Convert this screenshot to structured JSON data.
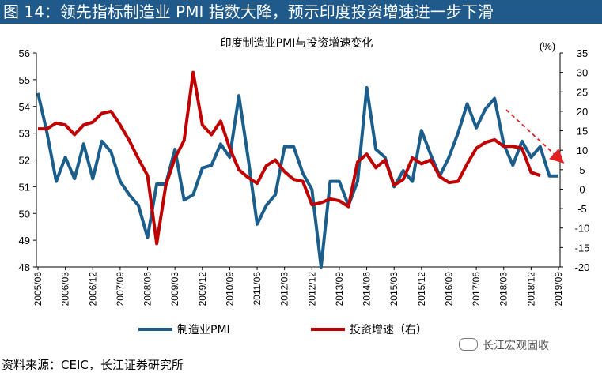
{
  "figure_title": "图 14：领先指标制造业 PMI 指数大降，预示印度投资增速进一步下滑",
  "source_note": "资料来源：CEIC，长江证券研究所",
  "watermark": "长江宏观固收",
  "colors": {
    "title_bar": "#1f5a8a",
    "pmi": "#1b5e8c",
    "invest": "#c00000",
    "arrow": "#e02020"
  },
  "chart_data": {
    "type": "line",
    "title": "印度制造业PMI与投资增速变化",
    "left_axis": {
      "min": 48,
      "max": 56,
      "step": 1,
      "ticks": [
        "48",
        "49",
        "50",
        "51",
        "52",
        "53",
        "54",
        "55",
        "56"
      ]
    },
    "right_axis": {
      "min": -20,
      "max": 35,
      "step": 5,
      "unit_label": "(%)",
      "ticks": [
        "-20",
        "-15",
        "-10",
        "-5",
        "0",
        "5",
        "10",
        "15",
        "20",
        "25",
        "30",
        "35"
      ]
    },
    "x_ticks": [
      "2005/06",
      "2006/03",
      "2006/12",
      "2007/09",
      "2008/06",
      "2009/03",
      "2009/12",
      "2010/09",
      "2011/06",
      "2012/03",
      "2012/12",
      "2013/09",
      "2014/06",
      "2015/03",
      "2015/12",
      "2016/09",
      "2017/06",
      "2018/03",
      "2018/12",
      "2019/09"
    ],
    "x_start": "2005/06",
    "quarter_step": 1,
    "series": [
      {
        "name": "制造业PMI",
        "axis": "left",
        "values": [
          54.5,
          53.0,
          51.2,
          52.1,
          51.3,
          52.6,
          51.3,
          52.7,
          52.3,
          51.2,
          50.7,
          50.3,
          49.1,
          51.1,
          51.1,
          52.4,
          50.5,
          50.7,
          51.7,
          51.8,
          52.6,
          52.1,
          54.4,
          52.1,
          49.6,
          50.3,
          50.7,
          52.5,
          52.5,
          51.5,
          50.9,
          48.0,
          51.2,
          51.2,
          50.3,
          51.2,
          54.7,
          52.4,
          52.1,
          51.0,
          51.6,
          51.2,
          53.1,
          52.2,
          51.4,
          52.1,
          53.0,
          54.1,
          53.2,
          53.9,
          54.3,
          52.6,
          51.8,
          52.7,
          52.1,
          52.5,
          51.4,
          51.4
        ]
      },
      {
        "name": "投资增速（右）",
        "axis": "right",
        "values": [
          15.5,
          15.5,
          17,
          16.5,
          14,
          16.5,
          17.2,
          19.5,
          20,
          16.5,
          12.5,
          7.8,
          3.5,
          -14,
          1,
          8,
          12.5,
          30,
          16.5,
          14,
          17.5,
          10.5,
          5,
          3,
          1.5,
          6,
          7.5,
          4.5,
          2.5,
          2.0,
          -4,
          -3.5,
          -2.5,
          -3,
          -4.5,
          7,
          9,
          5.5,
          7.5,
          1,
          2.5,
          8,
          6.5,
          7.5,
          3.2,
          1.7,
          2,
          6.5,
          10.5,
          12,
          12.7,
          11,
          11,
          10.5,
          4.3,
          3.5
        ]
      }
    ],
    "annotation": "downward-trend-arrow"
  }
}
